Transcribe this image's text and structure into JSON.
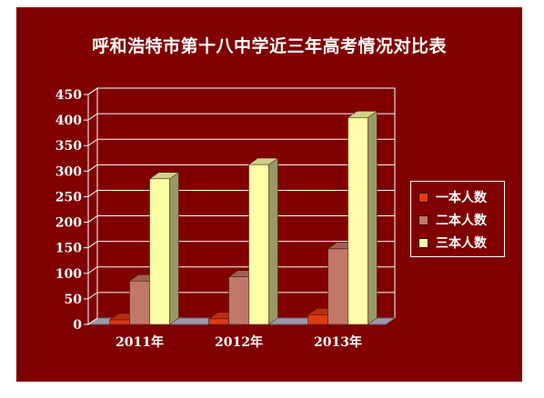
{
  "chart_data": {
    "type": "bar",
    "title": "呼和浩特市第十八中学近三年高考情况对比表",
    "categories": [
      "2011年",
      "2012年",
      "2013年"
    ],
    "series": [
      {
        "name": "一本人数",
        "color": "#e03a12",
        "values": [
          9,
          11,
          19
        ]
      },
      {
        "name": "二本人数",
        "color": "#c07868",
        "values": [
          85,
          93,
          148
        ]
      },
      {
        "name": "三本人数",
        "color": "#ffffa8",
        "values": [
          285,
          313,
          405
        ]
      }
    ],
    "yticks": [
      "0",
      "50",
      "100",
      "150",
      "200",
      "250",
      "300",
      "350",
      "400",
      "450"
    ],
    "ylim": [
      0,
      450
    ],
    "grid": true,
    "legend_position": "right"
  }
}
